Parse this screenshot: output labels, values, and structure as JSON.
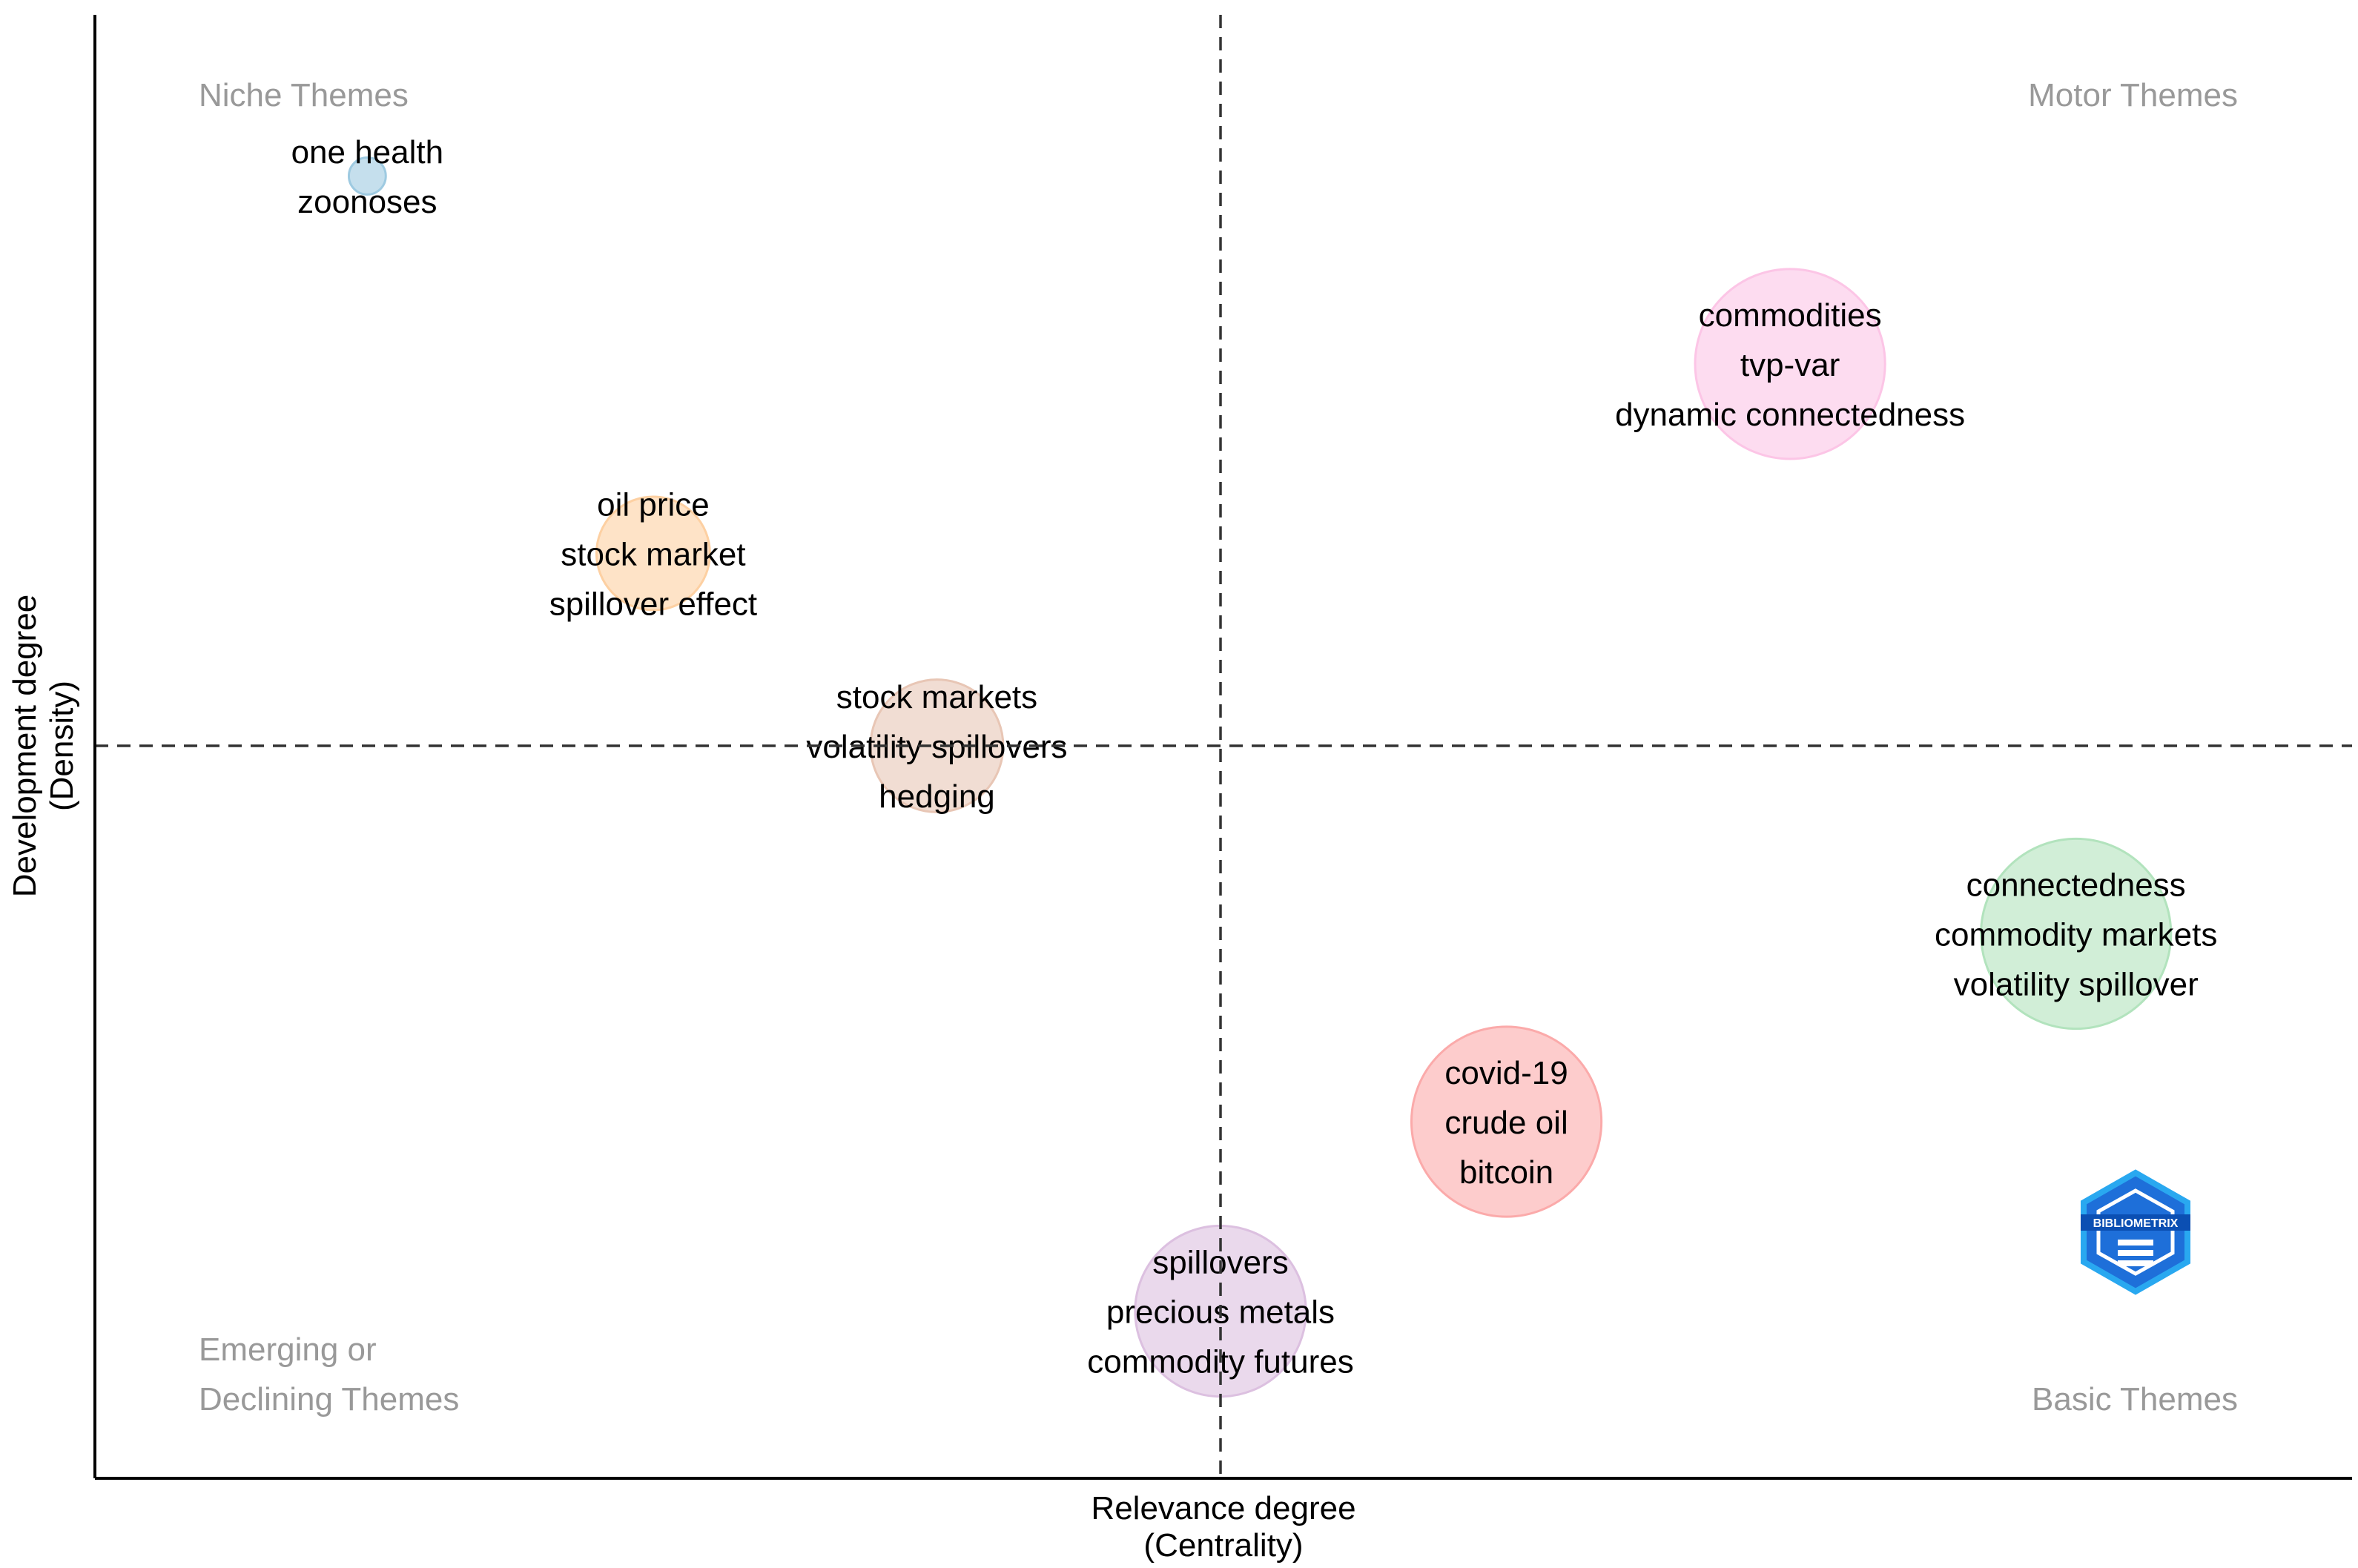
{
  "chart_data": {
    "type": "scatter",
    "title": "",
    "xlabel": [
      "Relevance degree",
      "(Centrality)"
    ],
    "ylabel": [
      "Development degree",
      "(Density)"
    ],
    "xlim": [
      0,
      100
    ],
    "ylim": [
      0,
      100
    ],
    "reference_lines": {
      "x": 50,
      "y": 50
    },
    "grid": false,
    "quadrants": {
      "top_left": [
        "Niche Themes"
      ],
      "top_right": [
        "Motor Themes"
      ],
      "bottom_left": [
        "Emerging or",
        "Declining Themes"
      ],
      "bottom_right": [
        "Basic Themes"
      ]
    },
    "clusters": [
      {
        "name": "cluster-one-health",
        "x": 12.1,
        "y": 88.2,
        "size": 1,
        "color": "#9ecae1",
        "labels": [
          "one health",
          "zoonoses"
        ]
      },
      {
        "name": "cluster-oil-price",
        "x": 24.8,
        "y": 62.9,
        "size": 5,
        "color": "#fdd0a2",
        "labels": [
          "oil price",
          "stock market",
          "spillover effect"
        ]
      },
      {
        "name": "cluster-stock-markets",
        "x": 37.4,
        "y": 50.0,
        "size": 6,
        "color": "#e8c6b5",
        "labels": [
          "stock markets",
          "volatility spillovers",
          "hedging"
        ]
      },
      {
        "name": "cluster-commodities",
        "x": 75.3,
        "y": 75.6,
        "size": 9,
        "color": "#fcc5e6",
        "labels": [
          "commodities",
          "tvp-var",
          "dynamic connectedness"
        ]
      },
      {
        "name": "cluster-connectedness",
        "x": 88.0,
        "y": 37.4,
        "size": 9,
        "color": "#b2e3bd",
        "labels": [
          "connectedness",
          "commodity markets",
          "volatility spillover"
        ]
      },
      {
        "name": "cluster-covid-19",
        "x": 62.7,
        "y": 24.8,
        "size": 9,
        "color": "#fbaaaa",
        "labels": [
          "covid-19",
          "crude oil",
          "bitcoin"
        ]
      },
      {
        "name": "cluster-spillovers",
        "x": 50.0,
        "y": 12.1,
        "size": 8,
        "color": "#dcc0e0",
        "labels": [
          "spillovers",
          "precious metals",
          "commodity futures"
        ]
      }
    ]
  },
  "logo": {
    "text": "BIBLIOMETRIX",
    "colors": [
      "#1e6fd9",
      "#29a8f0"
    ]
  }
}
